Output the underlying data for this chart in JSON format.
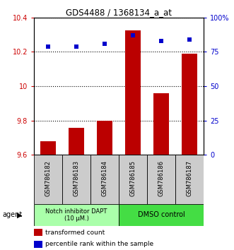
{
  "title": "GDS4488 / 1368134_a_at",
  "categories": [
    "GSM786182",
    "GSM786183",
    "GSM786184",
    "GSM786185",
    "GSM786186",
    "GSM786187"
  ],
  "bar_values": [
    9.68,
    9.76,
    9.8,
    10.325,
    9.96,
    10.19
  ],
  "bar_bottom": 9.6,
  "bar_color": "#bb0000",
  "percentile_values": [
    79,
    79,
    81,
    87,
    83,
    84
  ],
  "percentile_color": "#0000cc",
  "ylim_left": [
    9.6,
    10.4
  ],
  "ylim_right": [
    0,
    100
  ],
  "yticks_left": [
    9.6,
    9.8,
    10.0,
    10.2,
    10.4
  ],
  "ytick_labels_left": [
    "9.6",
    "9.8",
    "10",
    "10.2",
    "10.4"
  ],
  "yticks_right": [
    0,
    25,
    50,
    75,
    100
  ],
  "ytick_labels_right": [
    "0",
    "25",
    "50",
    "75",
    "100%"
  ],
  "group1_label": "Notch inhibitor DAPT\n(10 μM.)",
  "group2_label": "DMSO control",
  "group1_color": "#aaffaa",
  "group2_color": "#44dd44",
  "legend_bar_label": "transformed count",
  "legend_dot_label": "percentile rank within the sample",
  "agent_label": "agent",
  "tick_label_color_left": "#cc0000",
  "tick_label_color_right": "#0000cc",
  "bar_width": 0.55
}
